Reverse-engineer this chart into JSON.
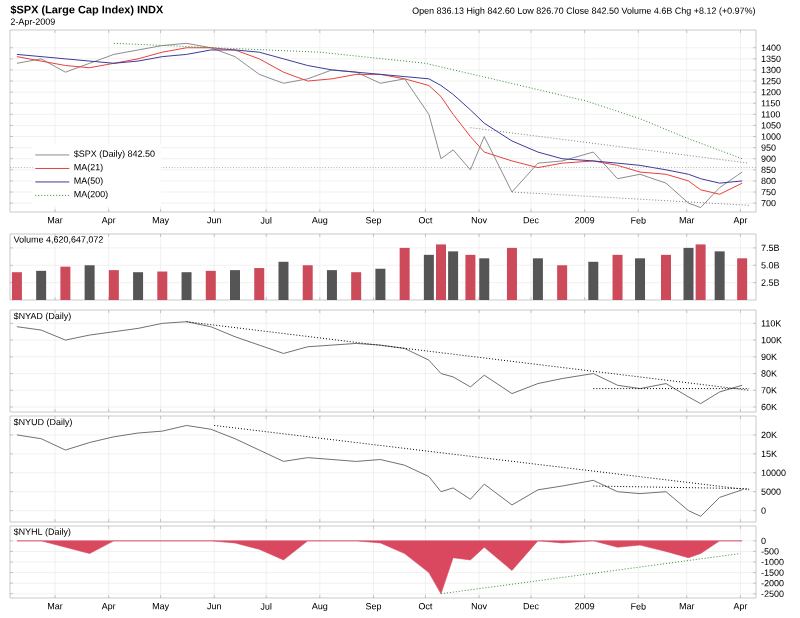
{
  "chart_data": [
    {
      "type": "line",
      "title": "$SPX (Large Cap Index) INDX",
      "subtitle": "2-Apr-2009",
      "annotations": [
        "Open 836.13 High 842.60 Low 826.70 Close 842.50 Volume 4.6B Chg +8.12 (+0.97%)"
      ],
      "x": [
        "2008-02-08",
        "2008-02-22",
        "2008-03-07",
        "2008-03-21",
        "2008-04-04",
        "2008-04-18",
        "2008-05-02",
        "2008-05-16",
        "2008-05-30",
        "2008-06-13",
        "2008-06-27",
        "2008-07-11",
        "2008-07-25",
        "2008-08-08",
        "2008-08-22",
        "2008-09-05",
        "2008-09-19",
        "2008-10-03",
        "2008-10-10",
        "2008-10-17",
        "2008-10-27",
        "2008-11-04",
        "2008-11-20",
        "2008-12-05",
        "2008-12-19",
        "2009-01-06",
        "2009-01-20",
        "2009-02-02",
        "2009-02-17",
        "2009-03-02",
        "2009-03-09",
        "2009-03-20",
        "2009-04-02"
      ],
      "xlim": [
        "2008-02-04",
        "2009-04-10"
      ],
      "xticks": [
        {
          "value": "2008-03-01",
          "label": "Mar"
        },
        {
          "value": "2008-04-01",
          "label": "Apr"
        },
        {
          "value": "2008-05-01",
          "label": "May"
        },
        {
          "value": "2008-06-01",
          "label": "Jun"
        },
        {
          "value": "2008-07-01",
          "label": "Jul"
        },
        {
          "value": "2008-08-01",
          "label": "Aug"
        },
        {
          "value": "2008-09-01",
          "label": "Sep"
        },
        {
          "value": "2008-10-01",
          "label": "Oct"
        },
        {
          "value": "2008-11-01",
          "label": "Nov"
        },
        {
          "value": "2008-12-01",
          "label": "Dec"
        },
        {
          "value": "2009-01-01",
          "label": "2009"
        },
        {
          "value": "2009-02-01",
          "label": "Feb"
        },
        {
          "value": "2009-03-01",
          "label": "Mar"
        },
        {
          "value": "2009-04-01",
          "label": "Apr"
        }
      ],
      "ylim": [
        660,
        1480
      ],
      "yticks": [
        700,
        750,
        800,
        850,
        900,
        950,
        1000,
        1050,
        1100,
        1150,
        1200,
        1250,
        1300,
        1350,
        1400
      ],
      "grid": true,
      "legend": "bottom left",
      "ref_lines": [
        {
          "axis": "y",
          "value": 860,
          "color": "#808080",
          "line_style": "dotted"
        }
      ],
      "series": [
        {
          "name": "$SPX (Daily) 842.50",
          "color": "#8c8c8c",
          "values": [
            1330,
            1350,
            1290,
            1330,
            1370,
            1390,
            1410,
            1420,
            1400,
            1360,
            1280,
            1240,
            1260,
            1300,
            1290,
            1240,
            1260,
            1100,
            900,
            940,
            850,
            1000,
            750,
            880,
            890,
            930,
            810,
            830,
            790,
            700,
            680,
            770,
            840
          ]
        },
        {
          "name": "MA(21)",
          "color": "#e8403c",
          "values": [
            1360,
            1340,
            1320,
            1310,
            1330,
            1350,
            1380,
            1400,
            1400,
            1390,
            1350,
            1290,
            1250,
            1260,
            1280,
            1280,
            1260,
            1230,
            1180,
            1100,
            1000,
            930,
            890,
            860,
            880,
            890,
            870,
            840,
            830,
            800,
            760,
            740,
            790
          ]
        },
        {
          "name": "MA(50)",
          "color": "#3a3a9c",
          "values": [
            1370,
            1360,
            1350,
            1340,
            1330,
            1340,
            1360,
            1370,
            1390,
            1390,
            1380,
            1350,
            1320,
            1300,
            1290,
            1280,
            1270,
            1260,
            1230,
            1190,
            1120,
            1060,
            980,
            930,
            900,
            890,
            880,
            870,
            850,
            830,
            810,
            790,
            800
          ]
        },
        {
          "name": "MA(200)",
          "color": "#2e8b2e",
          "line_style": "dotted",
          "x": [
            "2008-04-04",
            "2008-06-01",
            "2008-08-01",
            "2008-10-01",
            "2008-11-03",
            "2009-01-02",
            "2009-02-02",
            "2009-03-02",
            "2009-04-02"
          ],
          "values": [
            1420,
            1400,
            1380,
            1330,
            1270,
            1160,
            1080,
            990,
            900
          ]
        },
        {
          "color": "#808080",
          "line_style": "dotted",
          "x": [
            "2008-10-27",
            "2009-04-06"
          ],
          "values": [
            1040,
            880
          ]
        },
        {
          "color": "#808080",
          "line_style": "dotted",
          "x": [
            "2008-11-20",
            "2009-04-06"
          ],
          "values": [
            750,
            690
          ]
        }
      ]
    },
    {
      "type": "bar",
      "title": "Volume 4,620,647,072",
      "tick_labels": "y",
      "grid": true,
      "x": [
        "2008-02-08",
        "2008-02-22",
        "2008-03-07",
        "2008-03-21",
        "2008-04-04",
        "2008-04-18",
        "2008-05-02",
        "2008-05-16",
        "2008-05-30",
        "2008-06-13",
        "2008-06-27",
        "2008-07-11",
        "2008-07-25",
        "2008-08-08",
        "2008-08-22",
        "2008-09-05",
        "2008-09-19",
        "2008-10-03",
        "2008-10-10",
        "2008-10-17",
        "2008-10-27",
        "2008-11-04",
        "2008-11-20",
        "2008-12-05",
        "2008-12-19",
        "2009-01-06",
        "2009-01-20",
        "2009-02-02",
        "2009-02-17",
        "2009-03-02",
        "2009-03-09",
        "2009-03-20",
        "2009-04-02"
      ],
      "xlim": [
        "2008-02-04",
        "2009-04-10"
      ],
      "xticks": [
        "2008-03-01",
        "2008-04-01",
        "2008-05-01",
        "2008-06-01",
        "2008-07-01",
        "2008-08-01",
        "2008-09-01",
        "2008-10-01",
        "2008-11-01",
        "2008-12-01",
        "2009-01-01",
        "2009-02-01",
        "2009-03-01",
        "2009-04-01"
      ],
      "ylim": [
        0,
        9.5
      ],
      "yticks": [
        {
          "value": 2.5,
          "label": "2.5B"
        },
        {
          "value": 5,
          "label": "5.0B"
        },
        {
          "value": 7.5,
          "label": "7.5B"
        }
      ],
      "values": [
        4.0,
        4.2,
        4.8,
        5.0,
        4.3,
        4.0,
        4.1,
        4.0,
        4.2,
        4.3,
        4.6,
        5.5,
        5.0,
        4.3,
        4.0,
        4.5,
        7.5,
        6.5,
        8.0,
        7.0,
        6.5,
        6.0,
        7.5,
        6.0,
        5.0,
        5.5,
        6.5,
        6.0,
        6.5,
        7.5,
        8.0,
        7.0,
        6.0
      ],
      "colors": [
        "#cc4a5a",
        "#555555",
        "#cc4a5a",
        "#555555",
        "#cc4a5a",
        "#555555",
        "#cc4a5a",
        "#555555",
        "#cc4a5a",
        "#555555",
        "#cc4a5a",
        "#555555",
        "#cc4a5a",
        "#555555",
        "#cc4a5a",
        "#555555",
        "#cc4a5a",
        "#555555",
        "#cc4a5a",
        "#555555",
        "#cc4a5a",
        "#555555",
        "#cc4a5a",
        "#555555",
        "#cc4a5a",
        "#555555",
        "#cc4a5a",
        "#555555",
        "#cc4a5a",
        "#555555",
        "#cc4a5a",
        "#555555",
        "#cc4a5a"
      ]
    },
    {
      "type": "line",
      "title": "$NYAD (Daily)",
      "tick_labels": "y",
      "grid": true,
      "x": [
        "2008-02-08",
        "2008-02-22",
        "2008-03-07",
        "2008-03-21",
        "2008-04-04",
        "2008-04-18",
        "2008-05-02",
        "2008-05-16",
        "2008-05-30",
        "2008-06-13",
        "2008-06-27",
        "2008-07-11",
        "2008-07-25",
        "2008-08-08",
        "2008-08-22",
        "2008-09-05",
        "2008-09-19",
        "2008-10-03",
        "2008-10-10",
        "2008-10-17",
        "2008-10-27",
        "2008-11-04",
        "2008-11-20",
        "2008-12-05",
        "2008-12-19",
        "2009-01-06",
        "2009-01-20",
        "2009-02-02",
        "2009-02-17",
        "2009-03-02",
        "2009-03-09",
        "2009-03-20",
        "2009-04-02"
      ],
      "xlim": [
        "2008-02-04",
        "2009-04-10"
      ],
      "xticks": [
        "2008-03-01",
        "2008-04-01",
        "2008-05-01",
        "2008-06-01",
        "2008-07-01",
        "2008-08-01",
        "2008-09-01",
        "2008-10-01",
        "2008-11-01",
        "2008-12-01",
        "2009-01-01",
        "2009-02-01",
        "2009-03-01",
        "2009-04-01"
      ],
      "ylim": [
        57000,
        118000
      ],
      "yticks": [
        {
          "value": 60000,
          "label": "60K"
        },
        {
          "value": 70000,
          "label": "70K"
        },
        {
          "value": 80000,
          "label": "80K"
        },
        {
          "value": 90000,
          "label": "90K"
        },
        {
          "value": 100000,
          "label": "100K"
        },
        {
          "value": 110000,
          "label": "110K"
        }
      ],
      "series": [
        {
          "color": "#707070",
          "values": [
            108000,
            106000,
            100000,
            103000,
            105000,
            107000,
            110000,
            111000,
            108000,
            102000,
            97000,
            92000,
            96000,
            97000,
            98000,
            97000,
            95000,
            88000,
            80000,
            78000,
            72000,
            79000,
            68000,
            74000,
            77000,
            80000,
            73000,
            71000,
            74000,
            66000,
            62000,
            69000,
            73000
          ]
        },
        {
          "color": "#000000",
          "line_style": "dotted",
          "x": [
            "2008-05-16",
            "2009-04-06"
          ],
          "values": [
            111000,
            70000
          ]
        },
        {
          "color": "#000000",
          "line_style": "dotted",
          "x": [
            "2009-01-06",
            "2009-04-06"
          ],
          "values": [
            71000,
            71000
          ]
        }
      ]
    },
    {
      "type": "line",
      "title": "$NYUD (Daily)",
      "tick_labels": "y",
      "grid": true,
      "x": [
        "2008-02-08",
        "2008-02-22",
        "2008-03-07",
        "2008-03-21",
        "2008-04-04",
        "2008-04-18",
        "2008-05-02",
        "2008-05-16",
        "2008-05-30",
        "2008-06-13",
        "2008-06-27",
        "2008-07-11",
        "2008-07-25",
        "2008-08-08",
        "2008-08-22",
        "2008-09-05",
        "2008-09-19",
        "2008-10-03",
        "2008-10-10",
        "2008-10-17",
        "2008-10-27",
        "2008-11-04",
        "2008-11-20",
        "2008-12-05",
        "2008-12-19",
        "2009-01-06",
        "2009-01-20",
        "2009-02-02",
        "2009-02-17",
        "2009-03-02",
        "2009-03-09",
        "2009-03-20",
        "2009-04-02"
      ],
      "xlim": [
        "2008-02-04",
        "2009-04-10"
      ],
      "xticks": [
        "2008-03-01",
        "2008-04-01",
        "2008-05-01",
        "2008-06-01",
        "2008-07-01",
        "2008-08-01",
        "2008-09-01",
        "2008-10-01",
        "2008-11-01",
        "2008-12-01",
        "2009-01-01",
        "2009-02-01",
        "2009-03-01",
        "2009-04-01"
      ],
      "ylim": [
        -3000,
        25000
      ],
      "yticks": [
        0,
        5000,
        10000,
        {
          "value": 15000,
          "label": "15K"
        },
        {
          "value": 20000,
          "label": "20K"
        }
      ],
      "series": [
        {
          "color": "#707070",
          "values": [
            20000,
            19000,
            16000,
            18000,
            19500,
            20500,
            21000,
            22500,
            21500,
            19000,
            16000,
            13000,
            14000,
            13500,
            13000,
            13500,
            12000,
            9000,
            5000,
            6000,
            3000,
            7000,
            1500,
            5500,
            6500,
            8000,
            5000,
            4500,
            5000,
            0,
            -1500,
            3500,
            5500
          ]
        },
        {
          "color": "#000000",
          "line_style": "dotted",
          "x": [
            "2008-06-01",
            "2009-04-06"
          ],
          "values": [
            22500,
            5500
          ]
        },
        {
          "color": "#000000",
          "line_style": "dotted",
          "x": [
            "2009-01-06",
            "2009-04-06"
          ],
          "values": [
            6500,
            5800
          ]
        }
      ]
    },
    {
      "type": "area",
      "title": "$NYHL (Daily)",
      "grid": true,
      "x": [
        "2008-02-08",
        "2008-02-22",
        "2008-03-07",
        "2008-03-21",
        "2008-04-04",
        "2008-04-18",
        "2008-05-02",
        "2008-05-16",
        "2008-05-30",
        "2008-06-13",
        "2008-06-27",
        "2008-07-11",
        "2008-07-25",
        "2008-08-08",
        "2008-08-22",
        "2008-09-05",
        "2008-09-19",
        "2008-10-03",
        "2008-10-10",
        "2008-10-17",
        "2008-10-27",
        "2008-11-04",
        "2008-11-20",
        "2008-12-05",
        "2008-12-19",
        "2009-01-06",
        "2009-01-20",
        "2009-02-02",
        "2009-02-17",
        "2009-03-02",
        "2009-03-09",
        "2009-03-20",
        "2009-04-02"
      ],
      "xlim": [
        "2008-02-04",
        "2009-04-10"
      ],
      "xticks": [
        {
          "value": "2008-03-01",
          "label": "Mar"
        },
        {
          "value": "2008-04-01",
          "label": "Apr"
        },
        {
          "value": "2008-05-01",
          "label": "May"
        },
        {
          "value": "2008-06-01",
          "label": "Jun"
        },
        {
          "value": "2008-07-01",
          "label": "Jul"
        },
        {
          "value": "2008-08-01",
          "label": "Aug"
        },
        {
          "value": "2008-09-01",
          "label": "Sep"
        },
        {
          "value": "2008-10-01",
          "label": "Oct"
        },
        {
          "value": "2008-11-01",
          "label": "Nov"
        },
        {
          "value": "2008-12-01",
          "label": "Dec"
        },
        {
          "value": "2009-01-01",
          "label": "2009"
        },
        {
          "value": "2009-02-01",
          "label": "Feb"
        },
        {
          "value": "2009-03-01",
          "label": "Mar"
        },
        {
          "value": "2009-04-01",
          "label": "Apr"
        }
      ],
      "ylim": [
        -2700,
        700
      ],
      "yticks": [
        -2500,
        -2000,
        -1500,
        -1000,
        -500,
        0
      ],
      "series": [
        {
          "color": "#d9485f",
          "values": [
            0,
            0,
            -300,
            -600,
            0,
            0,
            0,
            0,
            0,
            -100,
            -400,
            -900,
            0,
            0,
            0,
            -100,
            -600,
            -1500,
            -2500,
            -800,
            -900,
            -300,
            -1400,
            0,
            -100,
            0,
            -300,
            -200,
            -500,
            -800,
            -600,
            0,
            0
          ]
        },
        {
          "type": "line",
          "color": "#2e8b2e",
          "line_style": "dotted",
          "x": [
            "2008-10-10",
            "2009-04-01"
          ],
          "values": [
            -2500,
            -600
          ]
        }
      ]
    }
  ]
}
